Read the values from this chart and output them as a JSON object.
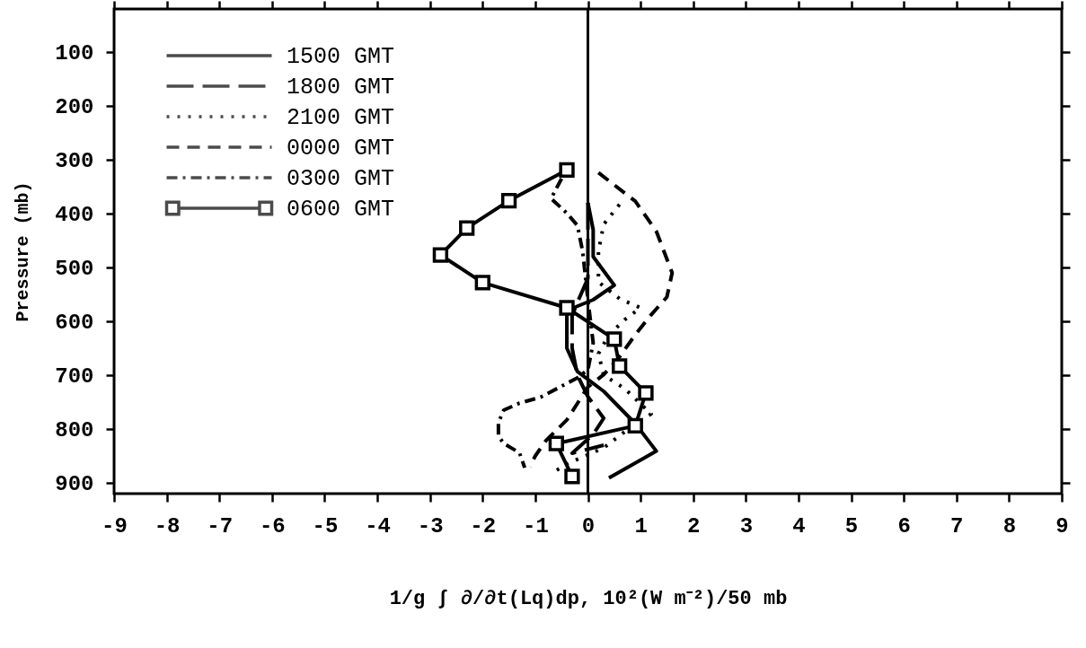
{
  "chart_data": {
    "type": "line",
    "xlabel": "1/g ∫ ∂/∂t(Lq)dp, 10²(W m⁻²)/50 mb",
    "ylabel": "Pressure (mb)",
    "xlim": [
      -9,
      9
    ],
    "xticks": [
      -9,
      -8,
      -7,
      -6,
      -5,
      -4,
      -3,
      -2,
      -1,
      0,
      1,
      2,
      3,
      4,
      5,
      6,
      7,
      8,
      9
    ],
    "ylim": [
      920,
      20
    ],
    "yticks": [
      100,
      200,
      300,
      400,
      500,
      600,
      700,
      800,
      900
    ],
    "grid": false,
    "legend": "top left",
    "ref_lines": [
      {
        "axis": "x",
        "value": 0,
        "color": "#000000"
      }
    ],
    "series": [
      {
        "name": "1500 GMT",
        "color": "#000000",
        "line_style": "solid",
        "x": [
          0.0,
          0.1,
          0.1,
          0.5,
          0.1,
          -0.4,
          -0.4,
          -0.2,
          0.3,
          0.9,
          1.3,
          0.4
        ],
        "values": [
          380,
          430,
          480,
          533,
          560,
          580,
          650,
          693,
          730,
          790,
          841,
          891
        ]
      },
      {
        "name": "1800 GMT",
        "color": "#000000",
        "line_style": "longdash",
        "x": [
          0.0,
          0.0,
          0.0,
          -0.2,
          -0.3,
          -0.3,
          -0.2,
          0.0,
          0.3,
          0.1,
          -0.3,
          0.3
        ],
        "values": [
          380,
          450,
          520,
          565,
          590,
          650,
          700,
          740,
          780,
          810,
          845,
          830
        ]
      },
      {
        "name": "2100 GMT",
        "color": "#000000",
        "line_style": "dotted",
        "x": [
          0.6,
          0.3,
          0.2,
          0.2,
          0.6,
          1.0,
          0.7,
          0.4,
          0.2,
          0.3,
          0.7,
          1.2,
          0.7,
          0.3,
          -0.1,
          -0.4,
          -0.6
        ],
        "values": [
          383,
          420,
          470,
          527,
          558,
          575,
          597,
          625,
          660,
          700,
          725,
          772,
          805,
          835,
          852,
          865,
          877
        ]
      },
      {
        "name": "0000 GMT",
        "color": "#000000",
        "line_style": "dashed",
        "x": [
          0.2,
          0.9,
          1.3,
          1.6,
          1.5,
          1.2,
          0.9,
          0.6,
          0.3,
          0.0,
          -0.4,
          -0.8,
          -1.0,
          -1.1
        ],
        "values": [
          324,
          377,
          433,
          510,
          555,
          588,
          625,
          666,
          699,
          722,
          783,
          822,
          850,
          870
        ]
      },
      {
        "name": "0300 GMT",
        "color": "#000000",
        "line_style": "dashdot",
        "x": [
          -0.5,
          -0.7,
          -0.4,
          -0.2,
          -0.1,
          0.0,
          0.1,
          0.0,
          -0.2,
          -0.9,
          -1.3,
          -1.6,
          -1.7,
          -1.7,
          -1.6,
          -1.3,
          -1.2
        ],
        "values": [
          335,
          372,
          399,
          422,
          470,
          560,
          640,
          690,
          705,
          741,
          752,
          765,
          788,
          813,
          827,
          844,
          872
        ]
      },
      {
        "name": "0600 GMT",
        "color": "#000000",
        "line_style": "solid",
        "marker": "square",
        "x": [
          -0.4,
          -1.5,
          -2.3,
          -2.8,
          -2.0,
          -0.4,
          0.5,
          0.6,
          1.1,
          0.9,
          -0.6,
          -0.3
        ],
        "values": [
          319,
          376,
          427,
          477,
          528,
          575,
          633,
          683,
          733,
          794,
          827,
          888
        ]
      }
    ]
  }
}
